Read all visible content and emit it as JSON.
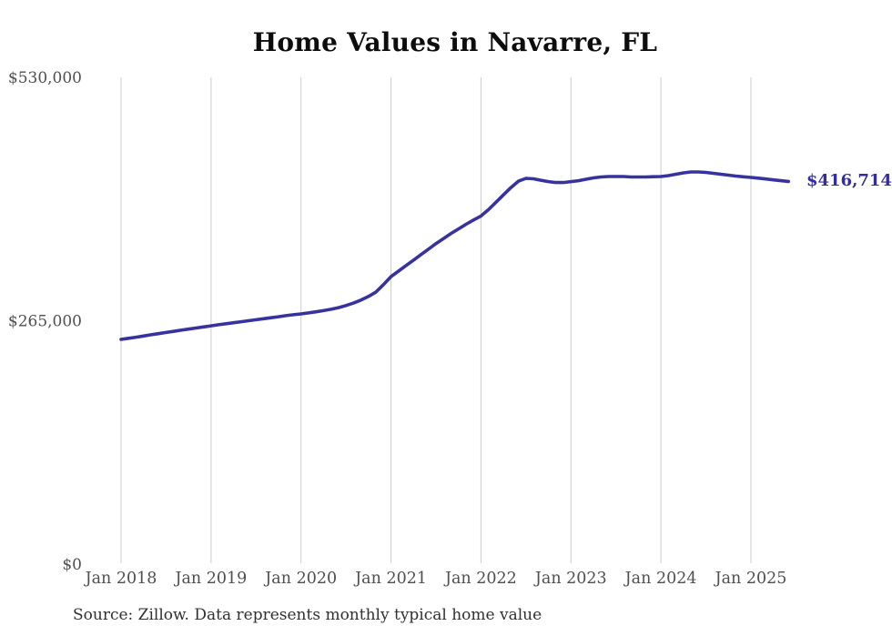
{
  "title": "Home Values in Navarre, FL",
  "source_note": "Source: Zillow. Data represents monthly typical home value",
  "end_label": "$416,714",
  "colors": {
    "line": "#37329f",
    "grid": "#cccccc",
    "axis_text": "#4f4f4f",
    "title_text": "#0d0d0d",
    "end_label_text": "#332e9f",
    "background": "#ffffff"
  },
  "chart_data": {
    "type": "line",
    "title": "Home Values in Navarre, FL",
    "xlabel": "",
    "ylabel": "",
    "x_start": "Jan 2018",
    "x_end": "Jun 2025",
    "frequency": "monthly",
    "x_tick_labels": [
      "Jan 2018",
      "Jan 2019",
      "Jan 2020",
      "Jan 2021",
      "Jan 2022",
      "Jan 2023",
      "Jan 2024",
      "Jan 2025"
    ],
    "y_ticks": [
      0,
      265000,
      530000
    ],
    "y_tick_labels": [
      "$0",
      "$265,000",
      "$530,000"
    ],
    "ylim": [
      0,
      530000
    ],
    "grid": "vertical-only",
    "legend": "none",
    "final_value": 416714,
    "final_value_label": "$416,714",
    "series": [
      {
        "name": "Typical home value",
        "values": [
          244700,
          245900,
          247100,
          248400,
          249700,
          250900,
          252200,
          253400,
          254700,
          255900,
          257100,
          258300,
          259500,
          260600,
          261700,
          262800,
          263900,
          265000,
          266100,
          267200,
          268300,
          269400,
          270500,
          271500,
          272400,
          273500,
          274700,
          276000,
          277500,
          279300,
          281500,
          284200,
          287500,
          291500,
          296300,
          304300,
          313000,
          319000,
          325000,
          331000,
          337000,
          343000,
          349000,
          354500,
          360000,
          365000,
          370000,
          374700,
          379000,
          386000,
          394000,
          402000,
          410000,
          417000,
          420000,
          419500,
          418000,
          416500,
          415500,
          415500,
          416500,
          417500,
          419000,
          420500,
          421500,
          422000,
          422000,
          422000,
          421500,
          421500,
          421500,
          421800,
          422000,
          423000,
          424500,
          426000,
          427000,
          427000,
          426500,
          425500,
          424500,
          423500,
          422500,
          421700,
          421000,
          420200,
          419300,
          418400,
          417500,
          416714
        ]
      }
    ]
  }
}
